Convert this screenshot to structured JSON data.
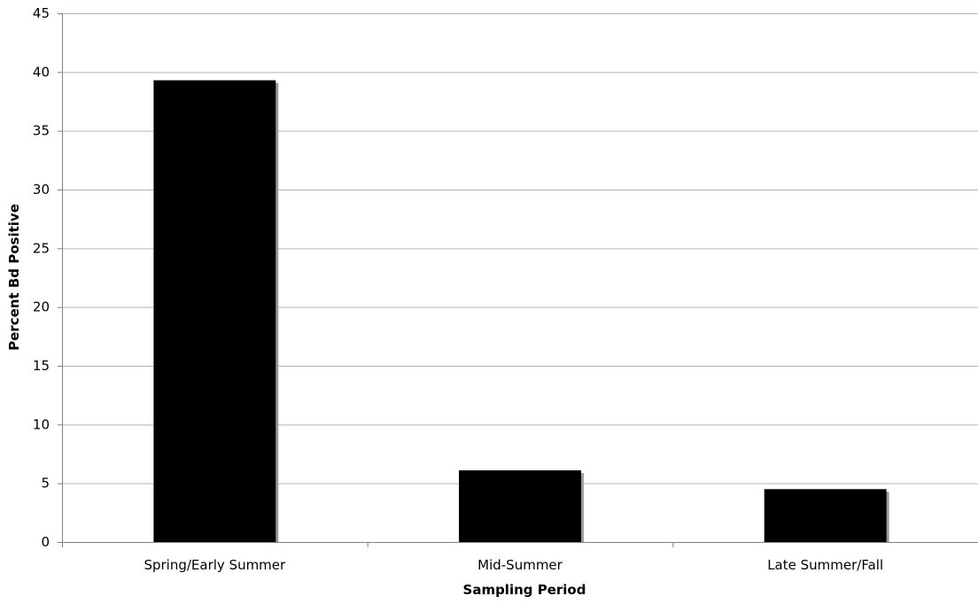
{
  "chart_data": {
    "type": "bar",
    "title": "",
    "xlabel": "Sampling Period",
    "ylabel": "Percent Bd Positive",
    "categories": [
      "Spring/Early Summer",
      "Mid-Summer",
      "Late Summer/Fall"
    ],
    "values": [
      39.3,
      6.1,
      4.5
    ],
    "ylim": [
      0,
      45
    ],
    "yticks": [
      0,
      5,
      10,
      15,
      20,
      25,
      30,
      35,
      40,
      45
    ],
    "grid": true,
    "legend": "none",
    "bar_color": "#000000",
    "shadow_color": "#999999",
    "gridline_color": "#b3b3b3",
    "axis_color": "#808080"
  }
}
